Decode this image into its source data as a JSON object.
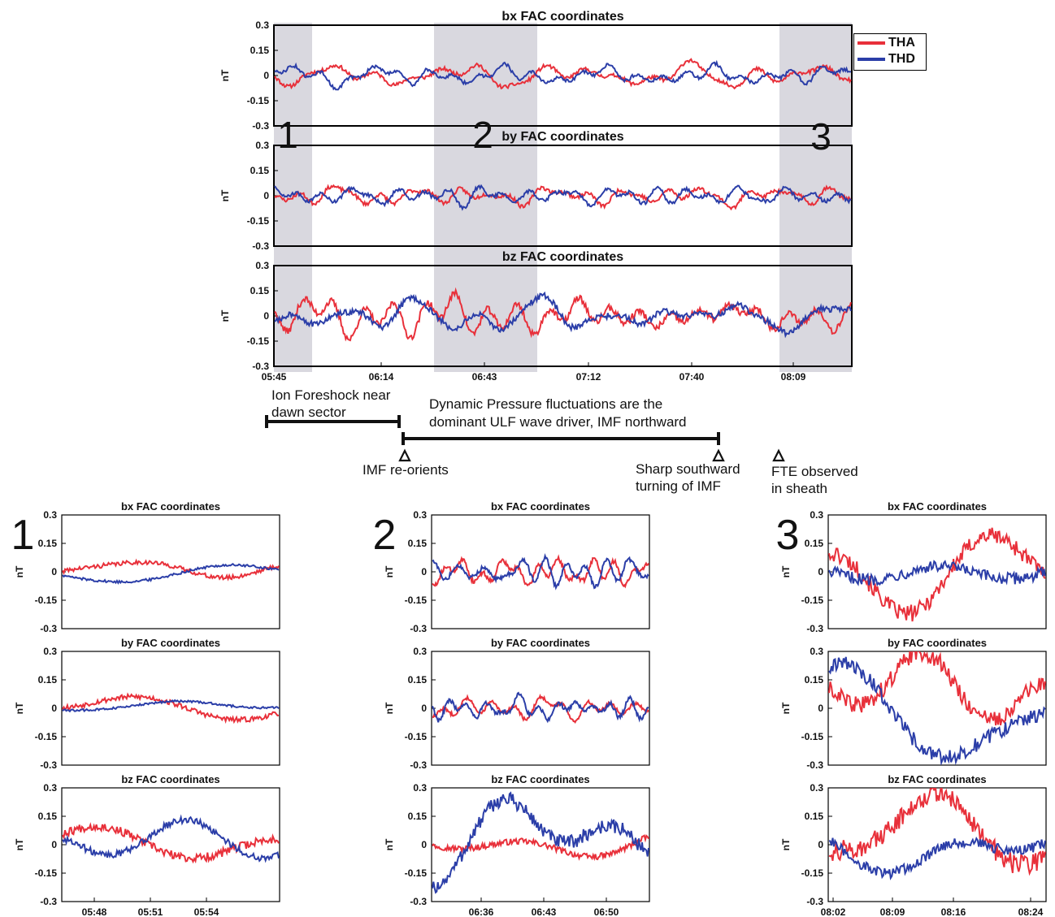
{
  "chart_data": [
    {
      "id": "top-bx",
      "type": "line",
      "title": "bx FAC coordinates",
      "ylabel": "nT",
      "ylim": [
        -0.3,
        0.3
      ],
      "yticks": [
        "0.3",
        "0.15",
        "0",
        "-0.15",
        "-0.3"
      ],
      "xticks": [],
      "series": [
        {
          "name": "THA",
          "amplitude": 0.05
        },
        {
          "name": "THD",
          "amplitude": 0.045
        }
      ]
    },
    {
      "id": "top-by",
      "type": "line",
      "title": "by FAC coordinates",
      "ylabel": "nT",
      "ylim": [
        -0.3,
        0.3
      ],
      "yticks": [
        "0.3",
        "0.15",
        "0",
        "-0.15",
        "-0.3"
      ],
      "xticks": [],
      "series": [
        {
          "name": "THA",
          "amplitude": 0.05
        },
        {
          "name": "THD",
          "amplitude": 0.05
        }
      ]
    },
    {
      "id": "top-bz",
      "type": "line",
      "title": "bz FAC coordinates",
      "ylabel": "nT",
      "ylim": [
        -0.3,
        0.3
      ],
      "yticks": [
        "0.3",
        "0.15",
        "0",
        "-0.15",
        "-0.3"
      ],
      "xticks": [
        "05:45",
        "06:14",
        "06:43",
        "07:12",
        "07:40",
        "08:09"
      ],
      "series": [
        {
          "name": "THA",
          "amplitude": 0.09
        },
        {
          "name": "THD",
          "amplitude": 0.08
        }
      ]
    },
    {
      "id": "p1-bx",
      "type": "line",
      "title": "bx FAC coordinates",
      "ylabel": "nT",
      "ylim": [
        -0.3,
        0.3
      ],
      "yticks": [
        "0.3",
        "0.15",
        "0",
        "-0.15",
        "-0.3"
      ],
      "xticks": [],
      "series": [
        {
          "name": "THA",
          "amplitude": 0.05
        },
        {
          "name": "THD",
          "amplitude": 0.03
        }
      ]
    },
    {
      "id": "p1-by",
      "type": "line",
      "title": "by FAC coordinates",
      "ylabel": "nT",
      "ylim": [
        -0.3,
        0.3
      ],
      "yticks": [
        "0.3",
        "0.15",
        "0",
        "-0.15",
        "-0.3"
      ],
      "xticks": [],
      "series": [
        {
          "name": "THA",
          "amplitude": 0.06
        },
        {
          "name": "THD",
          "amplitude": 0.025
        }
      ]
    },
    {
      "id": "p1-bz",
      "type": "line",
      "title": "bz FAC coordinates",
      "ylabel": "nT",
      "ylim": [
        -0.3,
        0.3
      ],
      "yticks": [
        "0.3",
        "0.15",
        "0",
        "-0.15",
        "-0.3"
      ],
      "xticks": [
        "05:48",
        "05:51",
        "05:54"
      ],
      "series": [
        {
          "name": "THA",
          "amplitude": 0.1
        },
        {
          "name": "THD",
          "amplitude": 0.08
        }
      ]
    },
    {
      "id": "p2-bx",
      "type": "line",
      "title": "bx FAC coordinates",
      "ylabel": "nT",
      "ylim": [
        -0.3,
        0.3
      ],
      "yticks": [
        "0.3",
        "0.15",
        "0",
        "-0.15",
        "-0.3"
      ],
      "xticks": [],
      "series": [
        {
          "name": "THA",
          "amplitude": 0.05
        },
        {
          "name": "THD",
          "amplitude": 0.05
        }
      ]
    },
    {
      "id": "p2-by",
      "type": "line",
      "title": "by FAC coordinates",
      "ylabel": "nT",
      "ylim": [
        -0.3,
        0.3
      ],
      "yticks": [
        "0.3",
        "0.15",
        "0",
        "-0.15",
        "-0.3"
      ],
      "xticks": [],
      "series": [
        {
          "name": "THA",
          "amplitude": 0.04
        },
        {
          "name": "THD",
          "amplitude": 0.05
        }
      ]
    },
    {
      "id": "p2-bz",
      "type": "line",
      "title": "bz FAC coordinates",
      "ylabel": "nT",
      "ylim": [
        -0.3,
        0.3
      ],
      "yticks": [
        "0.3",
        "0.15",
        "0",
        "-0.15",
        "-0.3"
      ],
      "xticks": [
        "06:36",
        "06:43",
        "06:50"
      ],
      "series": [
        {
          "name": "THA",
          "amplitude": 0.07
        },
        {
          "name": "THD",
          "amplitude": 0.17
        }
      ]
    },
    {
      "id": "p3-bx",
      "type": "line",
      "title": "bx FAC coordinates",
      "ylabel": "nT",
      "ylim": [
        -0.3,
        0.3
      ],
      "yticks": [
        "0.3",
        "0.15",
        "0",
        "-0.15",
        "-0.3"
      ],
      "xticks": [],
      "series": [
        {
          "name": "THA",
          "amplitude": 0.2
        },
        {
          "name": "THD",
          "amplitude": 0.14
        }
      ]
    },
    {
      "id": "p3-by",
      "type": "line",
      "title": "by FAC coordinates",
      "ylabel": "nT",
      "ylim": [
        -0.3,
        0.3
      ],
      "yticks": [
        "0.3",
        "0.15",
        "0",
        "-0.15",
        "-0.3"
      ],
      "xticks": [],
      "series": [
        {
          "name": "THA",
          "amplitude": 0.2
        },
        {
          "name": "THD",
          "amplitude": 0.17
        }
      ]
    },
    {
      "id": "p3-bz",
      "type": "line",
      "title": "bz FAC coordinates",
      "ylabel": "nT",
      "ylim": [
        -0.3,
        0.3
      ],
      "yticks": [
        "0.3",
        "0.15",
        "0",
        "-0.15",
        "-0.3"
      ],
      "xticks": [
        "08:02",
        "08:09",
        "08:16",
        "08:24"
      ],
      "series": [
        {
          "name": "THA",
          "amplitude": 0.24
        },
        {
          "name": "THD",
          "amplitude": 0.12
        }
      ]
    }
  ],
  "colors": {
    "THA": "#e8303a",
    "THD": "#2b3ea8",
    "shade": "#d9d8df"
  },
  "legend": {
    "tha": "THA",
    "thd": "THD"
  },
  "region_labels": {
    "r1": "1",
    "r2": "2",
    "r3": "3"
  },
  "panel_numbers": {
    "p1": "1",
    "p2": "2",
    "p3": "3"
  },
  "annotations": {
    "ion_foreshock_1": "Ion Foreshock near",
    "ion_foreshock_2": "dawn sector",
    "dynamic_pressure_1": "Dynamic Pressure fluctuations are the",
    "dynamic_pressure_2": "dominant ULF wave driver, IMF northward",
    "imf_reorients": "IMF re-orients",
    "sharp_southward_1": "Sharp southward",
    "sharp_southward_2": "turning of IMF",
    "fte_1": "FTE observed",
    "fte_2": "in sheath"
  }
}
